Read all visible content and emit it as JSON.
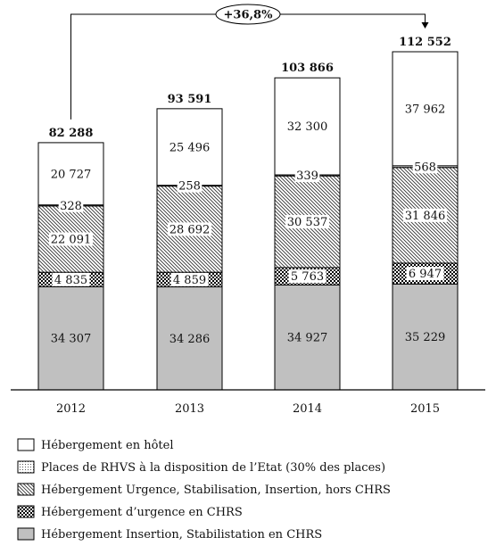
{
  "chart_data": {
    "type": "bar",
    "stacked": true,
    "categories": [
      "2012",
      "2013",
      "2014",
      "2015"
    ],
    "series": [
      {
        "name": "Hébergement Insertion, Stabilistation en CHRS",
        "values": [
          34307,
          34286,
          34927,
          35229
        ],
        "labels": [
          "34 307",
          "34 286",
          "34 927",
          "35 229"
        ],
        "pattern": "gray"
      },
      {
        "name": "Hébergement d’urgence en CHRS",
        "values": [
          4835,
          4859,
          5763,
          6947
        ],
        "labels": [
          "4 835",
          "4 859",
          "5 763",
          "6 947"
        ],
        "pattern": "checker"
      },
      {
        "name": "Hébergement Urgence, Stabilisation, Insertion, hors CHRS",
        "values": [
          22091,
          28692,
          30537,
          31846
        ],
        "labels": [
          "22 091",
          "28 692",
          "30 537",
          "31 846"
        ],
        "pattern": "hatch"
      },
      {
        "name": "Places de RHVS à la disposition de l’Etat (30% des places)",
        "values": [
          328,
          258,
          339,
          568
        ],
        "labels": [
          "328",
          "258",
          "339",
          "568"
        ],
        "pattern": "dots"
      },
      {
        "name": "Hébergement en hôtel",
        "values": [
          20727,
          25496,
          32300,
          37962
        ],
        "labels": [
          "20 727",
          "25 496",
          "32 300",
          "37 962"
        ],
        "pattern": "white"
      }
    ],
    "totals": [
      82288,
      93591,
      103866,
      112552
    ],
    "total_labels": [
      "82 288",
      "93 591",
      "103 866",
      "112 552"
    ],
    "annotation": "+36,8%",
    "ylim": [
      0,
      112552
    ],
    "grid": false,
    "legend_position": "bottom",
    "legend_order": [
      4,
      3,
      2,
      1,
      0
    ]
  }
}
